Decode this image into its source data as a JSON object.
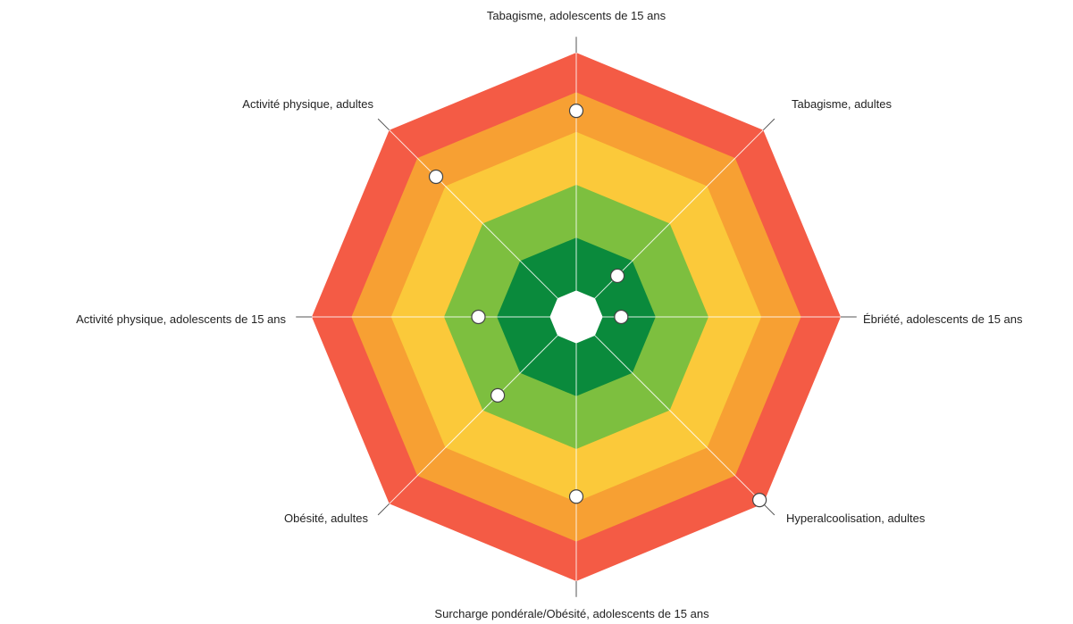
{
  "chart_data": {
    "type": "radar",
    "title": "",
    "axes": [
      "Tabagisme, adolescents de 15 ans",
      "Tabagisme, adultes",
      "Ébriété, adolescents de 15 ans",
      "Hyperalcoolisation, adultes",
      "Surcharge pondérale/Obésité, adolescents de 15 ans",
      "Obésité, adultes",
      "Activité physique, adolescents de 15 ans",
      "Activité physique, adultes"
    ],
    "scale": {
      "min": 0,
      "max": 5,
      "center_blank": 0.5
    },
    "bands": [
      {
        "from": 0.5,
        "to": 1.5,
        "color": "#0a8a3c"
      },
      {
        "from": 1.5,
        "to": 2.5,
        "color": "#7dbf3f"
      },
      {
        "from": 2.5,
        "to": 3.5,
        "color": "#fbc93a"
      },
      {
        "from": 3.5,
        "to": 4.25,
        "color": "#f7a033"
      },
      {
        "from": 4.25,
        "to": 5.0,
        "color": "#f45b45"
      }
    ],
    "series": [
      {
        "values": [
          3.9,
          1.1,
          0.85,
          4.9,
          3.4,
          2.1,
          1.85,
          3.75
        ]
      }
    ],
    "grid": false,
    "legend": "none"
  }
}
